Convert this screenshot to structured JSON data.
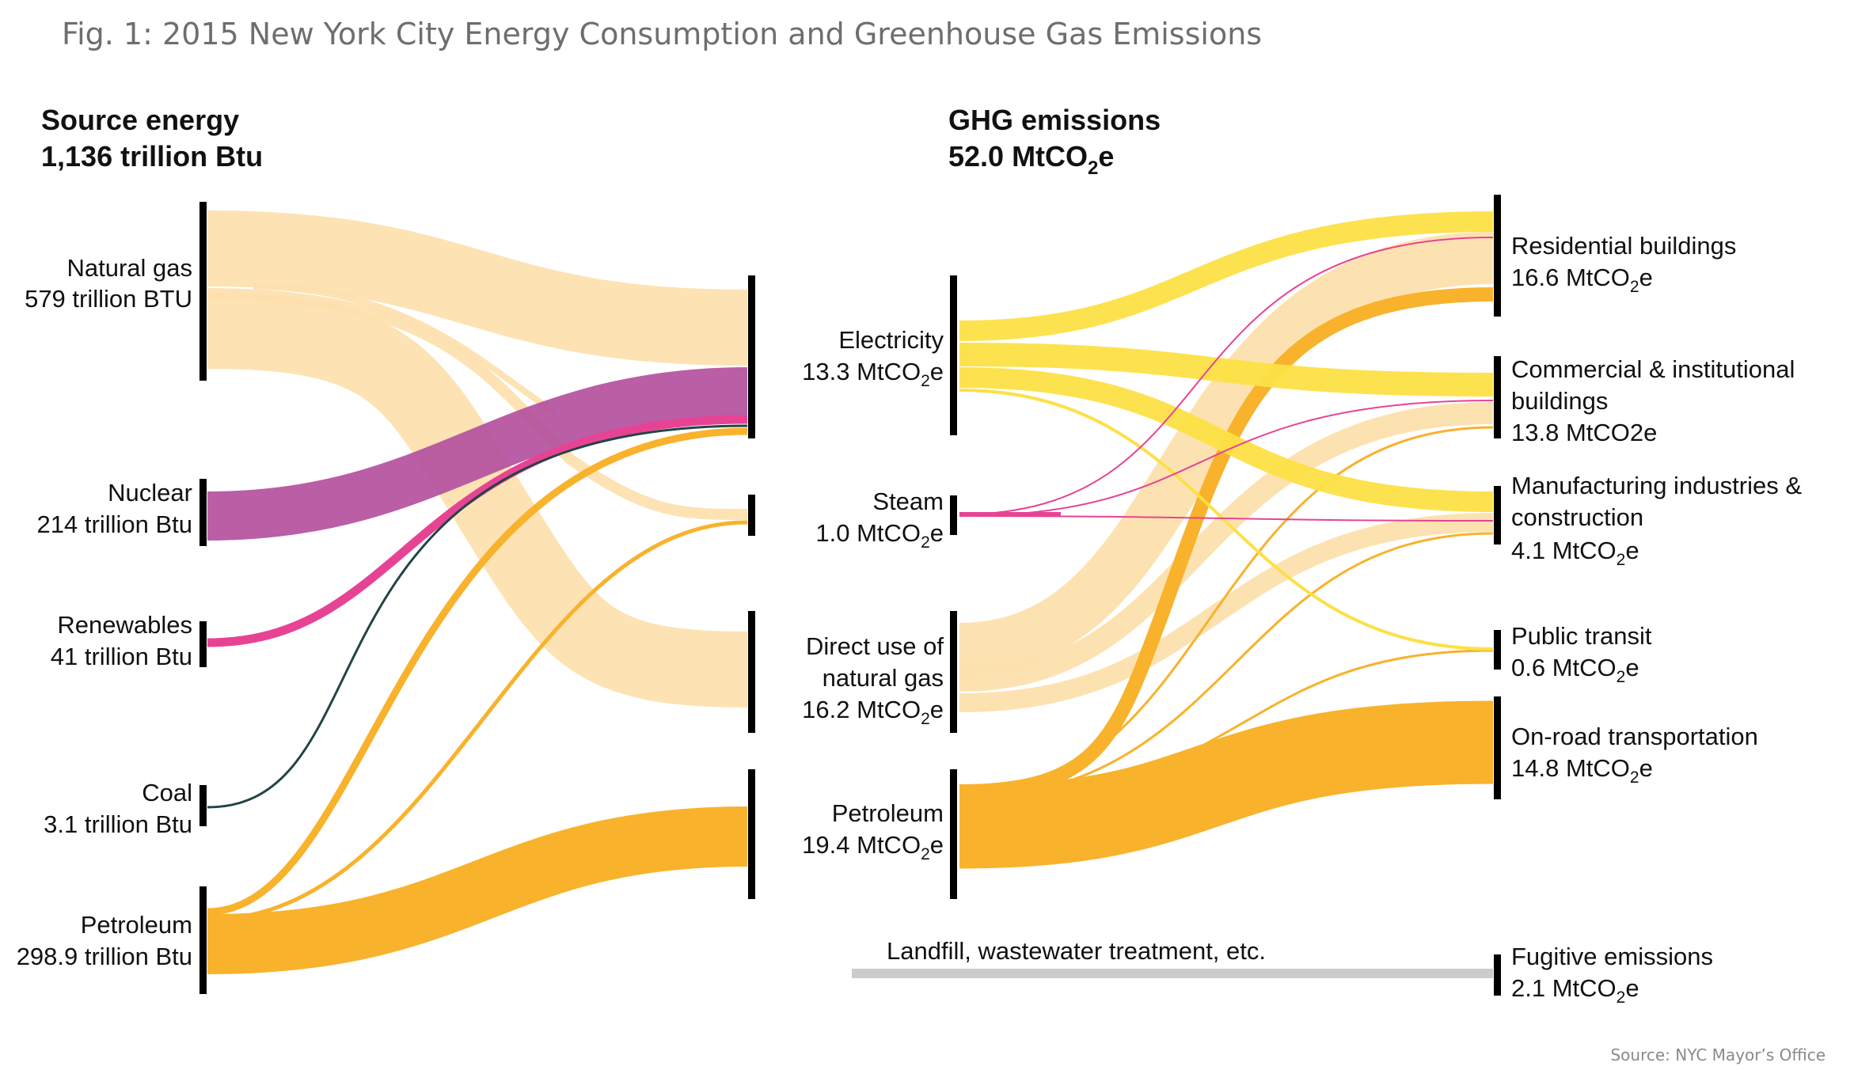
{
  "title": "Fig. 1: 2015 New York City Energy Consumption and Greenhouse Gas Emissions",
  "source": "Source: NYC Mayor’s Office",
  "colors": {
    "natural_gas": "#fde0ad",
    "nuclear": "#b4509e",
    "renewables": "#e74394",
    "coal": "#234446",
    "petroleum": "#f8b22c",
    "electricity": "#fde046",
    "other": "#cccccc",
    "bar": "#000000"
  },
  "source_energy": {
    "heading": "Source energy",
    "total": "1,136 trillion Btu",
    "nodes": [
      {
        "id": "natural_gas",
        "name": "Natural gas",
        "value_label": "579 trillion BTU",
        "value": 579
      },
      {
        "id": "nuclear",
        "name": "Nuclear",
        "value_label": "214 trillion Btu",
        "value": 214
      },
      {
        "id": "renewables",
        "name": "Renewables",
        "value_label": "41 trillion Btu",
        "value": 41
      },
      {
        "id": "coal",
        "name": "Coal",
        "value_label": "3.1 trillion Btu",
        "value": 3.1
      },
      {
        "id": "petroleum",
        "name": "Petroleum",
        "value_label": "298.9 trillion Btu",
        "value": 298.9
      }
    ]
  },
  "ghg": {
    "heading": "GHG emissions",
    "total_prefix": "52.0 MtCO",
    "total_sub": "2",
    "total_suffix": "e",
    "sources": [
      {
        "id": "electricity",
        "line1": "Electricity",
        "line2_prefix": "13.3 MtCO",
        "sub": "2",
        "suffix": "e",
        "value": 13.3
      },
      {
        "id": "steam",
        "line1": "Steam",
        "line2_prefix": "1.0 MtCO",
        "sub": "2",
        "suffix": "e",
        "value": 1.0
      },
      {
        "id": "direct_gas",
        "line1": "Direct use of",
        "line2": "natural gas",
        "line3_prefix": "16.2 MtCO",
        "sub": "2",
        "suffix": "e",
        "value": 16.2
      },
      {
        "id": "petroleum",
        "line1": "Petroleum",
        "line2_prefix": "19.4 MtCO",
        "sub": "2",
        "suffix": "e",
        "value": 19.4
      }
    ],
    "sectors": [
      {
        "id": "residential",
        "line1": "Residential buildings",
        "line2_prefix": "16.6 MtCO",
        "sub": "2",
        "suffix": "e",
        "value": 16.6
      },
      {
        "id": "commercial",
        "line1": "Commercial & institutional",
        "line2": "buildings",
        "line3": "13.8 MtCO2e",
        "value": 13.8
      },
      {
        "id": "manufacturing",
        "line1": "Manufacturing industries &",
        "line2": "construction",
        "line3_prefix": "4.1 MtCO",
        "sub": "2",
        "suffix": "e",
        "value": 4.1
      },
      {
        "id": "transit",
        "line1": "Public transit",
        "line2_prefix": "0.6 MtCO",
        "sub": "2",
        "suffix": "e",
        "value": 0.6
      },
      {
        "id": "onroad",
        "line1": "On-road transportation",
        "line2_prefix": "14.8 MtCO",
        "sub": "2",
        "suffix": "e",
        "value": 14.8
      },
      {
        "id": "fugitive",
        "line1": "Fugitive emissions",
        "line2_prefix": "2.1 MtCO",
        "sub": "2",
        "suffix": "e",
        "value": 2.1
      }
    ],
    "landfill_label": "Landfill, wastewater treatment, etc."
  },
  "energy_flows": [
    {
      "from": "natural_gas",
      "to": "electricity",
      "color": "natural_gas"
    },
    {
      "from": "natural_gas",
      "to": "steam",
      "color": "natural_gas"
    },
    {
      "from": "natural_gas",
      "to": "direct_gas",
      "color": "natural_gas"
    },
    {
      "from": "nuclear",
      "to": "electricity",
      "color": "nuclear"
    },
    {
      "from": "renewables",
      "to": "electricity",
      "color": "renewables"
    },
    {
      "from": "coal",
      "to": "electricity",
      "color": "coal"
    },
    {
      "from": "petroleum",
      "to": "electricity",
      "color": "petroleum"
    },
    {
      "from": "petroleum",
      "to": "steam",
      "color": "petroleum"
    },
    {
      "from": "petroleum",
      "to": "petroleum",
      "color": "petroleum"
    }
  ],
  "ghg_flows": [
    {
      "from": "electricity",
      "to": "residential",
      "color": "electricity"
    },
    {
      "from": "electricity",
      "to": "commercial",
      "color": "electricity"
    },
    {
      "from": "electricity",
      "to": "manufacturing",
      "color": "electricity"
    },
    {
      "from": "electricity",
      "to": "transit",
      "color": "electricity"
    },
    {
      "from": "steam",
      "to": "residential",
      "color": "renewables"
    },
    {
      "from": "steam",
      "to": "commercial",
      "color": "renewables"
    },
    {
      "from": "steam",
      "to": "manufacturing",
      "color": "renewables"
    },
    {
      "from": "direct_gas",
      "to": "residential",
      "color": "natural_gas"
    },
    {
      "from": "direct_gas",
      "to": "commercial",
      "color": "natural_gas"
    },
    {
      "from": "direct_gas",
      "to": "manufacturing",
      "color": "natural_gas"
    },
    {
      "from": "petroleum",
      "to": "residential",
      "color": "petroleum"
    },
    {
      "from": "petroleum",
      "to": "commercial",
      "color": "petroleum"
    },
    {
      "from": "petroleum",
      "to": "manufacturing",
      "color": "petroleum"
    },
    {
      "from": "petroleum",
      "to": "transit",
      "color": "petroleum"
    },
    {
      "from": "petroleum",
      "to": "onroad",
      "color": "petroleum"
    },
    {
      "from": "landfill",
      "to": "fugitive",
      "color": "other"
    }
  ]
}
